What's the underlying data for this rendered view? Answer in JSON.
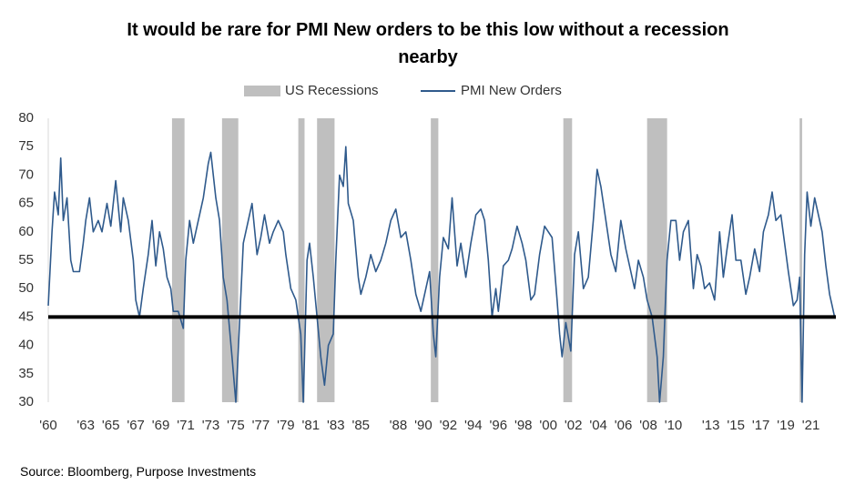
{
  "chart_data": {
    "type": "line",
    "title": "It would be rare for PMI New orders to be this low without a recession nearby",
    "source": "Source: Bloomberg, Purpose Investments",
    "xlim": [
      1960,
      2023
    ],
    "ylim": [
      30,
      80
    ],
    "yticks": [
      30,
      35,
      40,
      45,
      50,
      55,
      60,
      65,
      70,
      75,
      80
    ],
    "xticks": [
      {
        "value": 1960,
        "label": "'60"
      },
      {
        "value": 1963,
        "label": "'63"
      },
      {
        "value": 1965,
        "label": "'65"
      },
      {
        "value": 1967,
        "label": "'67"
      },
      {
        "value": 1969,
        "label": "'69"
      },
      {
        "value": 1971,
        "label": "'71"
      },
      {
        "value": 1973,
        "label": "'73"
      },
      {
        "value": 1975,
        "label": "'75"
      },
      {
        "value": 1977,
        "label": "'77"
      },
      {
        "value": 1979,
        "label": "'79"
      },
      {
        "value": 1981,
        "label": "'81"
      },
      {
        "value": 1983,
        "label": "'83"
      },
      {
        "value": 1985,
        "label": "'85"
      },
      {
        "value": 1988,
        "label": "'88"
      },
      {
        "value": 1990,
        "label": "'90"
      },
      {
        "value": 1992,
        "label": "'92"
      },
      {
        "value": 1994,
        "label": "'94"
      },
      {
        "value": 1996,
        "label": "'96"
      },
      {
        "value": 1998,
        "label": "'98"
      },
      {
        "value": 2000,
        "label": "'00"
      },
      {
        "value": 2002,
        "label": "'02"
      },
      {
        "value": 2004,
        "label": "'04"
      },
      {
        "value": 2006,
        "label": "'06"
      },
      {
        "value": 2008,
        "label": "'08"
      },
      {
        "value": 2010,
        "label": "'10"
      },
      {
        "value": 2013,
        "label": "'13"
      },
      {
        "value": 2015,
        "label": "'15"
      },
      {
        "value": 2017,
        "label": "'17"
      },
      {
        "value": 2019,
        "label": "'19"
      },
      {
        "value": 2021,
        "label": "'21"
      }
    ],
    "reference_line": 45,
    "reference_color": "#000000",
    "series": [
      {
        "name": "US Recessions",
        "color": "#bfbfbf",
        "periods": [
          [
            1969.9,
            1970.9
          ],
          [
            1973.9,
            1975.2
          ],
          [
            1980.0,
            1980.5
          ],
          [
            1981.5,
            1982.9
          ],
          [
            1990.6,
            1991.2
          ],
          [
            2001.2,
            2001.9
          ],
          [
            2007.9,
            2009.5
          ],
          [
            2020.1,
            2020.3
          ]
        ]
      },
      {
        "name": "PMI New Orders",
        "color": "#2f5a8c",
        "x": [
          1960.0,
          1960.3,
          1960.5,
          1960.8,
          1961.0,
          1961.2,
          1961.5,
          1961.8,
          1962.0,
          1962.5,
          1962.8,
          1963.0,
          1963.3,
          1963.6,
          1964.0,
          1964.3,
          1964.7,
          1965.0,
          1965.4,
          1965.8,
          1966.0,
          1966.4,
          1966.8,
          1967.0,
          1967.3,
          1967.6,
          1968.0,
          1968.3,
          1968.6,
          1968.9,
          1969.2,
          1969.5,
          1969.8,
          1970.0,
          1970.4,
          1970.8,
          1971.0,
          1971.3,
          1971.6,
          1972.0,
          1972.4,
          1972.8,
          1973.0,
          1973.4,
          1973.7,
          1974.0,
          1974.3,
          1974.7,
          1975.0,
          1975.3,
          1975.6,
          1976.0,
          1976.3,
          1976.7,
          1977.0,
          1977.3,
          1977.7,
          1978.0,
          1978.4,
          1978.8,
          1979.0,
          1979.4,
          1979.8,
          1980.2,
          1980.4,
          1980.7,
          1980.9,
          1981.2,
          1981.5,
          1981.8,
          1982.1,
          1982.4,
          1982.8,
          1983.0,
          1983.3,
          1983.6,
          1983.8,
          1984.0,
          1984.4,
          1984.8,
          1985.0,
          1985.4,
          1985.8,
          1986.2,
          1986.6,
          1987.0,
          1987.4,
          1987.8,
          1988.2,
          1988.6,
          1989.0,
          1989.4,
          1989.8,
          1990.2,
          1990.5,
          1990.8,
          1991.0,
          1991.3,
          1991.6,
          1992.0,
          1992.3,
          1992.7,
          1993.0,
          1993.4,
          1993.8,
          1994.2,
          1994.6,
          1994.9,
          1995.2,
          1995.5,
          1995.8,
          1996.0,
          1996.4,
          1996.8,
          1997.1,
          1997.5,
          1997.9,
          1998.2,
          1998.6,
          1998.9,
          1999.3,
          1999.7,
          2000.0,
          2000.3,
          2000.7,
          2000.9,
          2001.1,
          2001.4,
          2001.8,
          2002.1,
          2002.4,
          2002.8,
          2003.2,
          2003.6,
          2003.9,
          2004.2,
          2004.6,
          2005.0,
          2005.4,
          2005.8,
          2006.2,
          2006.6,
          2006.9,
          2007.2,
          2007.6,
          2007.9,
          2008.3,
          2008.7,
          2008.9,
          2009.2,
          2009.5,
          2009.8,
          2010.2,
          2010.5,
          2010.8,
          2011.2,
          2011.6,
          2011.9,
          2012.2,
          2012.5,
          2012.9,
          2013.3,
          2013.7,
          2014.0,
          2014.3,
          2014.7,
          2015.0,
          2015.4,
          2015.8,
          2016.1,
          2016.5,
          2016.9,
          2017.2,
          2017.6,
          2017.9,
          2018.2,
          2018.6,
          2018.9,
          2019.2,
          2019.6,
          2019.9,
          2020.1,
          2020.3,
          2020.5,
          2020.7,
          2021.0,
          2021.3,
          2021.6,
          2021.9,
          2022.2,
          2022.5,
          2022.7,
          2022.9
        ],
        "values": [
          47,
          60,
          67,
          63,
          73,
          62,
          66,
          55,
          53,
          53,
          58,
          62,
          66,
          60,
          62,
          60,
          65,
          61,
          69,
          60,
          66,
          62,
          55,
          48,
          45,
          50,
          56,
          62,
          54,
          60,
          57,
          52,
          50,
          46,
          46,
          43,
          55,
          62,
          58,
          62,
          66,
          72,
          74,
          66,
          62,
          52,
          48,
          38,
          30,
          44,
          58,
          62,
          65,
          56,
          59,
          63,
          58,
          60,
          62,
          60,
          56,
          50,
          48,
          42,
          30,
          55,
          58,
          52,
          45,
          38,
          33,
          40,
          42,
          55,
          70,
          68,
          75,
          65,
          62,
          52,
          49,
          52,
          56,
          53,
          55,
          58,
          62,
          64,
          59,
          60,
          55,
          49,
          46,
          50,
          53,
          42,
          38,
          52,
          59,
          57,
          66,
          54,
          58,
          52,
          58,
          63,
          64,
          62,
          55,
          45,
          50,
          46,
          54,
          55,
          57,
          61,
          58,
          55,
          48,
          49,
          56,
          61,
          60,
          59,
          48,
          42,
          38,
          44,
          39,
          56,
          60,
          50,
          52,
          62,
          71,
          68,
          62,
          56,
          53,
          62,
          57,
          53,
          50,
          55,
          52,
          48,
          45,
          38,
          30,
          38,
          55,
          62,
          62,
          55,
          60,
          62,
          50,
          56,
          54,
          50,
          51,
          48,
          60,
          52,
          57,
          63,
          55,
          55,
          49,
          52,
          57,
          53,
          60,
          63,
          67,
          62,
          63,
          58,
          53,
          47,
          48,
          52,
          30,
          56,
          67,
          61,
          66,
          63,
          60,
          54,
          49,
          47,
          45
        ]
      }
    ]
  }
}
